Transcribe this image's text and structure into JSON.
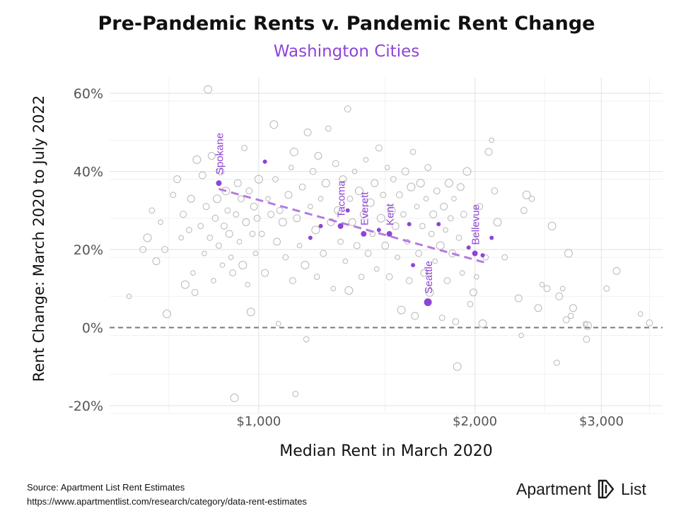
{
  "header": {
    "title": "Pre-Pandemic Rents v. Pandemic Rent Change",
    "subtitle": "Washington Cities"
  },
  "footer": {
    "source_line": "Source: Apartment List Rent Estimates",
    "url_line": "https://www.apartmentlist.com/research/category/data-rent-estimates"
  },
  "logo": {
    "word1": "Apartment",
    "word2": "List"
  },
  "colors": {
    "accent": "#8e44d6",
    "background_point": "#b8b8b8",
    "trend": "#b57be0",
    "zero_line": "#7a7a7a",
    "grid": "#e6e6e6"
  },
  "chart_data": {
    "type": "scatter",
    "title": "Pre-Pandemic Rents v. Pandemic Rent Change",
    "subtitle": "Washington Cities",
    "xlabel": "Median Rent in March 2020",
    "ylabel": "Rent Change: March 2020 to July 2022",
    "x_scale": "log",
    "xlim": [
      620,
      3650
    ],
    "ylim": [
      -22,
      64
    ],
    "x_ticks": [
      1000,
      2000,
      3000
    ],
    "x_tick_labels": [
      "$1,000",
      "$2,000",
      "$3,000"
    ],
    "y_ticks": [
      -20,
      0,
      20,
      40,
      60
    ],
    "y_tick_labels": [
      "-20%",
      "0%",
      "20%",
      "40%",
      "60%"
    ],
    "grid": true,
    "zero_line": {
      "y": 0,
      "style": "dashed"
    },
    "trendline": {
      "x": [
        880,
        2080
      ],
      "y": [
        35.5,
        16.5
      ],
      "style": "dashed"
    },
    "highlighted": [
      {
        "label": "Spokane",
        "x": 880,
        "y": 37
      },
      {
        "label": "Tacoma",
        "x": 1300,
        "y": 26
      },
      {
        "label": "Everett",
        "x": 1400,
        "y": 24
      },
      {
        "label": "Kent",
        "x": 1520,
        "y": 24
      },
      {
        "label": "Seattle",
        "x": 1720,
        "y": 6.5
      },
      {
        "label": "Bellevue",
        "x": 2000,
        "y": 19
      }
    ],
    "highlighted_minor": [
      {
        "x": 1020,
        "y": 42.5
      },
      {
        "x": 1180,
        "y": 23
      },
      {
        "x": 1220,
        "y": 26
      },
      {
        "x": 1330,
        "y": 30
      },
      {
        "x": 1470,
        "y": 25
      },
      {
        "x": 1620,
        "y": 26.5
      },
      {
        "x": 1640,
        "y": 16
      },
      {
        "x": 1780,
        "y": 26.5
      },
      {
        "x": 1960,
        "y": 20.5
      },
      {
        "x": 2050,
        "y": 18.5
      },
      {
        "x": 2110,
        "y": 23
      }
    ],
    "points": [
      {
        "x": 660,
        "y": 8
      },
      {
        "x": 690,
        "y": 20
      },
      {
        "x": 700,
        "y": 23
      },
      {
        "x": 710,
        "y": 30
      },
      {
        "x": 720,
        "y": 17
      },
      {
        "x": 730,
        "y": 27
      },
      {
        "x": 740,
        "y": 20
      },
      {
        "x": 745,
        "y": 3.5
      },
      {
        "x": 760,
        "y": 34
      },
      {
        "x": 770,
        "y": 38
      },
      {
        "x": 780,
        "y": 23
      },
      {
        "x": 785,
        "y": 29
      },
      {
        "x": 790,
        "y": 11
      },
      {
        "x": 800,
        "y": 25
      },
      {
        "x": 805,
        "y": 33
      },
      {
        "x": 810,
        "y": 14
      },
      {
        "x": 815,
        "y": 9
      },
      {
        "x": 820,
        "y": 43
      },
      {
        "x": 830,
        "y": 26
      },
      {
        "x": 835,
        "y": 39
      },
      {
        "x": 840,
        "y": 19
      },
      {
        "x": 845,
        "y": 31
      },
      {
        "x": 850,
        "y": 61
      },
      {
        "x": 855,
        "y": 23
      },
      {
        "x": 860,
        "y": 44
      },
      {
        "x": 865,
        "y": 12
      },
      {
        "x": 870,
        "y": 28
      },
      {
        "x": 875,
        "y": 33
      },
      {
        "x": 880,
        "y": 21
      },
      {
        "x": 885,
        "y": 40
      },
      {
        "x": 890,
        "y": 16
      },
      {
        "x": 895,
        "y": 26
      },
      {
        "x": 900,
        "y": 35
      },
      {
        "x": 905,
        "y": 30
      },
      {
        "x": 910,
        "y": 24
      },
      {
        "x": 915,
        "y": 18
      },
      {
        "x": 920,
        "y": 14
      },
      {
        "x": 925,
        "y": -18
      },
      {
        "x": 930,
        "y": 29
      },
      {
        "x": 935,
        "y": 37
      },
      {
        "x": 940,
        "y": 22
      },
      {
        "x": 945,
        "y": 33
      },
      {
        "x": 950,
        "y": 16
      },
      {
        "x": 955,
        "y": 46
      },
      {
        "x": 960,
        "y": 27
      },
      {
        "x": 965,
        "y": 11
      },
      {
        "x": 970,
        "y": 35
      },
      {
        "x": 975,
        "y": 4
      },
      {
        "x": 980,
        "y": 24
      },
      {
        "x": 985,
        "y": 31
      },
      {
        "x": 990,
        "y": 19
      },
      {
        "x": 995,
        "y": 28
      },
      {
        "x": 1000,
        "y": 38
      },
      {
        "x": 1010,
        "y": 24
      },
      {
        "x": 1020,
        "y": 14
      },
      {
        "x": 1030,
        "y": 33
      },
      {
        "x": 1040,
        "y": 29
      },
      {
        "x": 1050,
        "y": 52
      },
      {
        "x": 1055,
        "y": 38
      },
      {
        "x": 1060,
        "y": 22
      },
      {
        "x": 1065,
        "y": 1
      },
      {
        "x": 1070,
        "y": 30
      },
      {
        "x": 1080,
        "y": 27
      },
      {
        "x": 1090,
        "y": 18
      },
      {
        "x": 1100,
        "y": 34
      },
      {
        "x": 1110,
        "y": 41
      },
      {
        "x": 1115,
        "y": 12
      },
      {
        "x": 1120,
        "y": 45
      },
      {
        "x": 1125,
        "y": -17
      },
      {
        "x": 1130,
        "y": 28
      },
      {
        "x": 1140,
        "y": 21
      },
      {
        "x": 1150,
        "y": 36
      },
      {
        "x": 1160,
        "y": 16
      },
      {
        "x": 1165,
        "y": -3
      },
      {
        "x": 1170,
        "y": 50
      },
      {
        "x": 1180,
        "y": 31
      },
      {
        "x": 1190,
        "y": 40
      },
      {
        "x": 1200,
        "y": 25
      },
      {
        "x": 1205,
        "y": 13
      },
      {
        "x": 1210,
        "y": 44
      },
      {
        "x": 1220,
        "y": 33
      },
      {
        "x": 1230,
        "y": 19
      },
      {
        "x": 1240,
        "y": 37
      },
      {
        "x": 1250,
        "y": 51
      },
      {
        "x": 1260,
        "y": 27
      },
      {
        "x": 1270,
        "y": 10
      },
      {
        "x": 1280,
        "y": 42
      },
      {
        "x": 1290,
        "y": 30
      },
      {
        "x": 1300,
        "y": 22
      },
      {
        "x": 1310,
        "y": 38
      },
      {
        "x": 1320,
        "y": 17
      },
      {
        "x": 1330,
        "y": 56
      },
      {
        "x": 1335,
        "y": 9.5
      },
      {
        "x": 1340,
        "y": 33
      },
      {
        "x": 1350,
        "y": 27
      },
      {
        "x": 1360,
        "y": 40
      },
      {
        "x": 1370,
        "y": 21
      },
      {
        "x": 1380,
        "y": 35
      },
      {
        "x": 1390,
        "y": 13
      },
      {
        "x": 1400,
        "y": 29
      },
      {
        "x": 1410,
        "y": 43
      },
      {
        "x": 1420,
        "y": 19
      },
      {
        "x": 1430,
        "y": 32
      },
      {
        "x": 1440,
        "y": 24
      },
      {
        "x": 1450,
        "y": 37
      },
      {
        "x": 1460,
        "y": 15
      },
      {
        "x": 1470,
        "y": 46
      },
      {
        "x": 1480,
        "y": 28
      },
      {
        "x": 1490,
        "y": 34
      },
      {
        "x": 1500,
        "y": 21
      },
      {
        "x": 1510,
        "y": 41
      },
      {
        "x": 1520,
        "y": 13
      },
      {
        "x": 1530,
        "y": 30
      },
      {
        "x": 1540,
        "y": 38
      },
      {
        "x": 1550,
        "y": 26
      },
      {
        "x": 1560,
        "y": 18
      },
      {
        "x": 1570,
        "y": 34
      },
      {
        "x": 1580,
        "y": 4.5
      },
      {
        "x": 1590,
        "y": 29
      },
      {
        "x": 1600,
        "y": 40
      },
      {
        "x": 1610,
        "y": 22
      },
      {
        "x": 1620,
        "y": 12
      },
      {
        "x": 1630,
        "y": 36
      },
      {
        "x": 1640,
        "y": 45
      },
      {
        "x": 1650,
        "y": 3
      },
      {
        "x": 1660,
        "y": 31
      },
      {
        "x": 1670,
        "y": 19
      },
      {
        "x": 1680,
        "y": 37
      },
      {
        "x": 1690,
        "y": 26
      },
      {
        "x": 1700,
        "y": 14
      },
      {
        "x": 1710,
        "y": 33
      },
      {
        "x": 1720,
        "y": 41
      },
      {
        "x": 1730,
        "y": 9
      },
      {
        "x": 1740,
        "y": 24
      },
      {
        "x": 1750,
        "y": 29
      },
      {
        "x": 1760,
        "y": 17
      },
      {
        "x": 1770,
        "y": 35
      },
      {
        "x": 1790,
        "y": 21
      },
      {
        "x": 1800,
        "y": 2.5
      },
      {
        "x": 1810,
        "y": 31
      },
      {
        "x": 1820,
        "y": 25
      },
      {
        "x": 1830,
        "y": 12
      },
      {
        "x": 1840,
        "y": 37
      },
      {
        "x": 1850,
        "y": 28
      },
      {
        "x": 1860,
        "y": 19
      },
      {
        "x": 1870,
        "y": 33
      },
      {
        "x": 1880,
        "y": 1.5
      },
      {
        "x": 1890,
        "y": -10
      },
      {
        "x": 1900,
        "y": 23
      },
      {
        "x": 1910,
        "y": 36
      },
      {
        "x": 1920,
        "y": 14
      },
      {
        "x": 1930,
        "y": 29
      },
      {
        "x": 1950,
        "y": 40
      },
      {
        "x": 1970,
        "y": 6
      },
      {
        "x": 1990,
        "y": 9
      },
      {
        "x": 2010,
        "y": 13
      },
      {
        "x": 2030,
        "y": 31
      },
      {
        "x": 2050,
        "y": 1
      },
      {
        "x": 2070,
        "y": 18
      },
      {
        "x": 2090,
        "y": 45
      },
      {
        "x": 2110,
        "y": 48
      },
      {
        "x": 2130,
        "y": 35
      },
      {
        "x": 2150,
        "y": 27
      },
      {
        "x": 2200,
        "y": 18
      },
      {
        "x": 2300,
        "y": 7.5
      },
      {
        "x": 2320,
        "y": -2
      },
      {
        "x": 2340,
        "y": 30
      },
      {
        "x": 2360,
        "y": 34
      },
      {
        "x": 2400,
        "y": 33
      },
      {
        "x": 2450,
        "y": 5
      },
      {
        "x": 2480,
        "y": 11
      },
      {
        "x": 2520,
        "y": 10
      },
      {
        "x": 2560,
        "y": 26
      },
      {
        "x": 2600,
        "y": -9
      },
      {
        "x": 2620,
        "y": 8
      },
      {
        "x": 2650,
        "y": 10
      },
      {
        "x": 2680,
        "y": 2
      },
      {
        "x": 2700,
        "y": 19
      },
      {
        "x": 2720,
        "y": 3
      },
      {
        "x": 2740,
        "y": 5
      },
      {
        "x": 2850,
        "y": 1
      },
      {
        "x": 2860,
        "y": -3
      },
      {
        "x": 2870,
        "y": 0.5
      },
      {
        "x": 3050,
        "y": 10
      },
      {
        "x": 3150,
        "y": 14.5
      },
      {
        "x": 3400,
        "y": 3.5
      },
      {
        "x": 3500,
        "y": 1.2
      }
    ]
  }
}
